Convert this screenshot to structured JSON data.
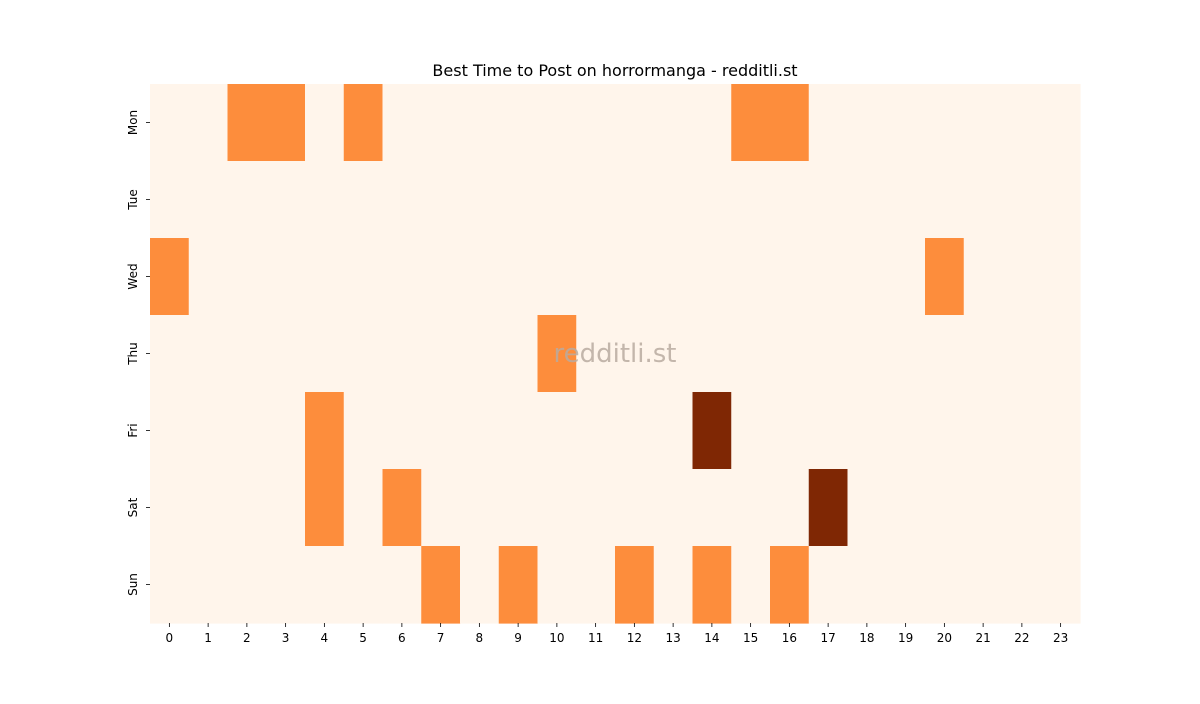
{
  "chart_data": {
    "type": "heatmap",
    "title": "Best Time to Post on horrormanga - redditli.st",
    "xlabel": "",
    "ylabel": "",
    "x_labels": [
      "0",
      "1",
      "2",
      "3",
      "4",
      "5",
      "6",
      "7",
      "8",
      "9",
      "10",
      "11",
      "12",
      "13",
      "14",
      "15",
      "16",
      "17",
      "18",
      "19",
      "20",
      "21",
      "22",
      "23"
    ],
    "y_labels": [
      "Mon",
      "Tue",
      "Wed",
      "Thu",
      "Fri",
      "Sat",
      "Sun"
    ],
    "values": [
      [
        0,
        0,
        1,
        1,
        0,
        1,
        0,
        0,
        0,
        0,
        0,
        0,
        0,
        0,
        0,
        1,
        1,
        0,
        0,
        0,
        0,
        0,
        0,
        0
      ],
      [
        0,
        0,
        0,
        0,
        0,
        0,
        0,
        0,
        0,
        0,
        0,
        0,
        0,
        0,
        0,
        0,
        0,
        0,
        0,
        0,
        0,
        0,
        0,
        0
      ],
      [
        1,
        0,
        0,
        0,
        0,
        0,
        0,
        0,
        0,
        0,
        0,
        0,
        0,
        0,
        0,
        0,
        0,
        0,
        0,
        0,
        1,
        0,
        0,
        0
      ],
      [
        0,
        0,
        0,
        0,
        0,
        0,
        0,
        0,
        0,
        0,
        1,
        0,
        0,
        0,
        0,
        0,
        0,
        0,
        0,
        0,
        0,
        0,
        0,
        0
      ],
      [
        0,
        0,
        0,
        0,
        1,
        0,
        0,
        0,
        0,
        0,
        0,
        0,
        0,
        0,
        2,
        0,
        0,
        0,
        0,
        0,
        0,
        0,
        0,
        0
      ],
      [
        0,
        0,
        0,
        0,
        1,
        0,
        1,
        0,
        0,
        0,
        0,
        0,
        0,
        0,
        0,
        0,
        0,
        2,
        0,
        0,
        0,
        0,
        0,
        0
      ],
      [
        0,
        0,
        0,
        0,
        0,
        0,
        0,
        1,
        0,
        1,
        0,
        0,
        1,
        0,
        1,
        0,
        1,
        0,
        0,
        0,
        0,
        0,
        0,
        0
      ]
    ],
    "colormap": "Oranges",
    "colors": {
      "low": "#fff5eb",
      "mid": "#fd8d3c",
      "high": "#7f2704"
    },
    "vmin": 0,
    "vmax": 2,
    "grid": false,
    "legend": "none",
    "watermark": "redditli.st"
  }
}
